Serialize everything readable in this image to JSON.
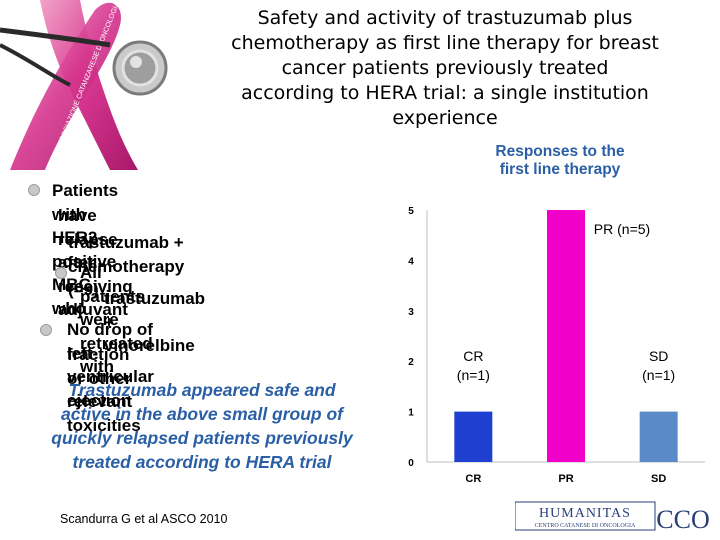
{
  "title_lines": [
    "Safety and activity of trastuzumab plus",
    "chemotherapy as first line therapy for breast",
    "cancer patients previously treated",
    "according to HERA trial: a single institution",
    "experience"
  ],
  "ribbon_text": "ASSOCIAZIONE CATANZARESE DI ONCOLOGIA e se prima ciò accade",
  "bullets": {
    "b1_lines": [
      "Patients with HER2-positive MBC who",
      "have relapse after receiving adjuvant",
      "trastuzumab + chemotherapy  (=9)"
    ],
    "b2_lines": [
      "All patients  were retreated with",
      "trastuzumab + vinorelbine"
    ],
    "b3_lines": [
      "No drop of left-ventricular ejection",
      "fraction or other relevant toxicities"
    ]
  },
  "conclusion_lines": [
    "Trastuzumab appeared safe and",
    "active in the above small group of",
    "quickly relapsed patients previously",
    "treated according to HERA trial"
  ],
  "citation": "Scandurra G et al ASCO 2010",
  "logo": {
    "name": "HUMANITAS",
    "subtitle": "CENTRO CATANESE DI ONCOLOGIA",
    "monogram": "CCO"
  },
  "colors": {
    "title_blue": "#2a5fa6",
    "bar_cr": "#1f3fd0",
    "bar_pr": "#f000c8",
    "bar_sd": "#5b8ac9",
    "ribbon": "#d6368f"
  },
  "chart_data": {
    "type": "bar",
    "title_lines": [
      "Responses to the",
      "first line therapy"
    ],
    "categories": [
      "CR",
      "PR",
      "SD"
    ],
    "values": [
      1,
      5,
      1
    ],
    "bar_labels": [
      [
        "CR",
        "(n=1)"
      ],
      [
        "PR (n=5)"
      ],
      [
        "SD",
        "(n=1)"
      ]
    ],
    "ylim": [
      0,
      5
    ],
    "yticks": [
      "0",
      "1",
      "2",
      "3",
      "4",
      "5"
    ],
    "grid": false,
    "legend": "none"
  }
}
